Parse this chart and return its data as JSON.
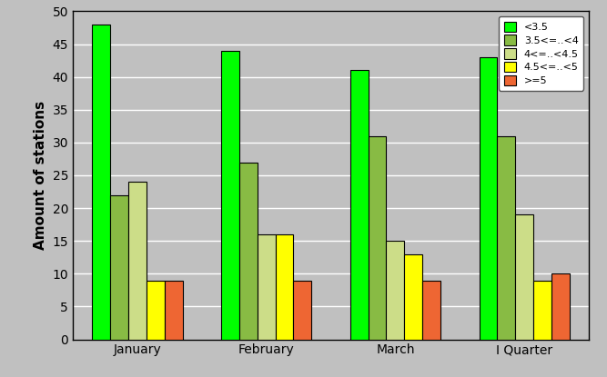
{
  "categories": [
    "January",
    "February",
    "March",
    "I Quarter"
  ],
  "series": [
    {
      "label": "<3.5",
      "values": [
        48,
        44,
        41,
        43
      ],
      "color": "#00FF00"
    },
    {
      "label": "3.5<=..<4",
      "values": [
        22,
        27,
        31,
        31
      ],
      "color": "#88BB44"
    },
    {
      "label": "4<=..<4.5",
      "values": [
        24,
        16,
        15,
        19
      ],
      "color": "#CCDD88"
    },
    {
      "label": "4.5<=..<5",
      "values": [
        9,
        16,
        13,
        9
      ],
      "color": "#FFFF00"
    },
    {
      "label": ">=5",
      "values": [
        9,
        9,
        9,
        10
      ],
      "color": "#EE6633"
    }
  ],
  "ylabel": "Amount of stations",
  "ylim": [
    0,
    50
  ],
  "yticks": [
    0,
    5,
    10,
    15,
    20,
    25,
    30,
    35,
    40,
    45,
    50
  ],
  "background_color": "#C0C0C0",
  "plot_bg_color": "#C0C0C0",
  "grid_color": "#FFFFFF",
  "bar_edge_color": "#000000",
  "legend_fontsize": 8,
  "axis_label_fontsize": 11,
  "bar_width": 0.14,
  "figsize": [
    6.67,
    4.15
  ],
  "dpi": 100
}
